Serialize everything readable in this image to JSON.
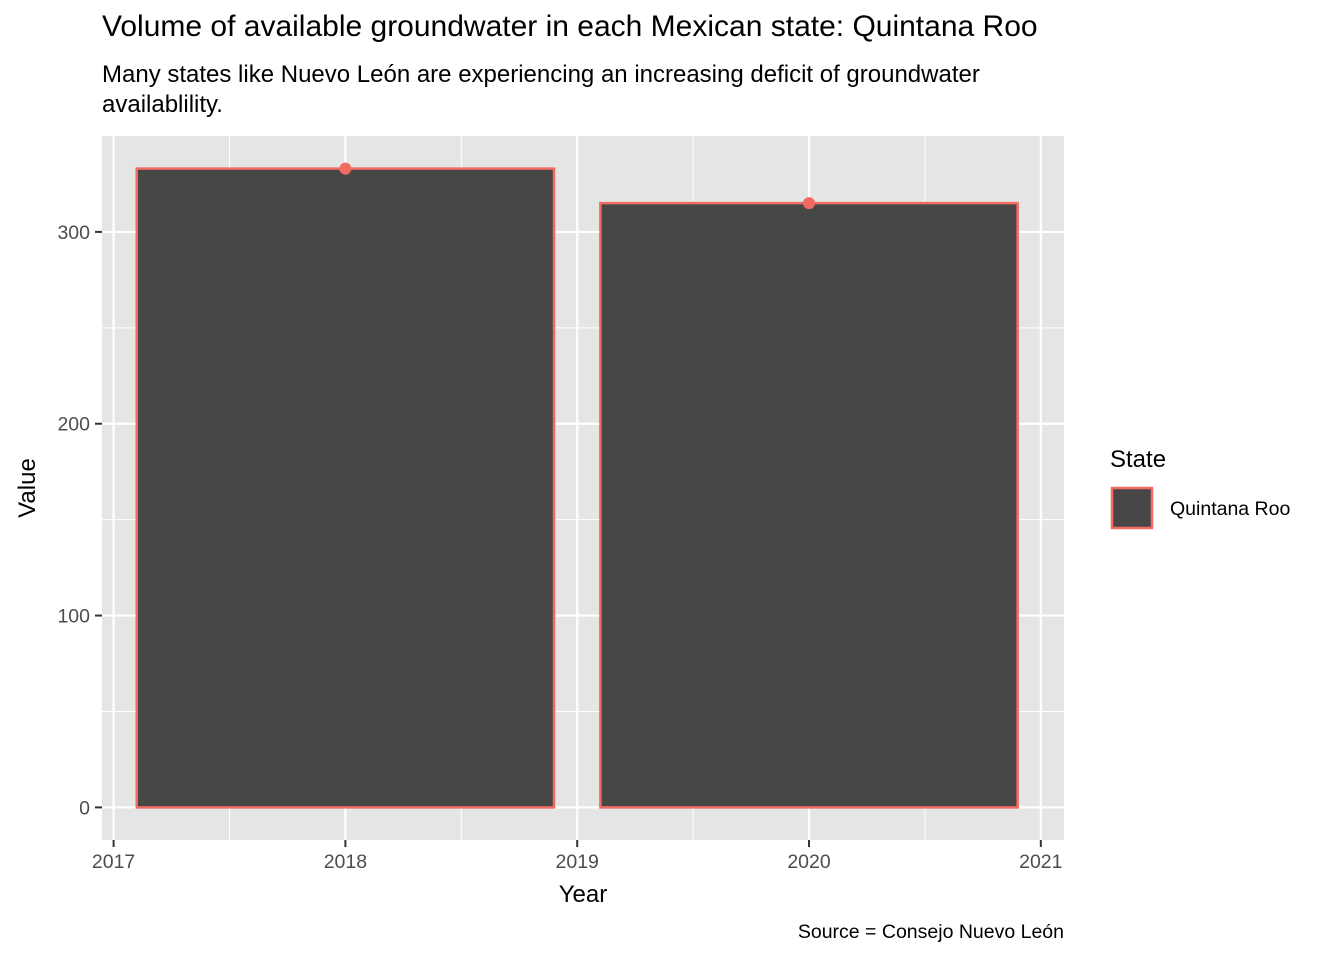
{
  "chart_data": {
    "type": "bar",
    "title": "Volume of available groundwater in each Mexican state: Quintana Roo",
    "subtitle": "Many states like Nuevo León are experiencing an increasing deficit of groundwater availablility.",
    "caption": "Source = Consejo Nuevo León",
    "xlabel": "Year",
    "ylabel": "Value",
    "x": [
      2018,
      2020
    ],
    "series": [
      {
        "name": "Quintana Roo",
        "values": [
          333,
          315
        ]
      }
    ],
    "xlim": [
      2016.95,
      2021.1
    ],
    "ylim": [
      -17,
      350
    ],
    "xticks": [
      2017,
      2018,
      2019,
      2020,
      2021
    ],
    "yticks": [
      0,
      100,
      200,
      300
    ],
    "bar_width_years": 1.8,
    "points": true,
    "grid": true,
    "legend": {
      "title": "State",
      "position": "right"
    },
    "colors": {
      "panel": "#e5e5e5",
      "grid": "#ffffff",
      "bar_fill": "#474747",
      "bar_outline": "#f26b63",
      "point": "#f26b63"
    }
  }
}
